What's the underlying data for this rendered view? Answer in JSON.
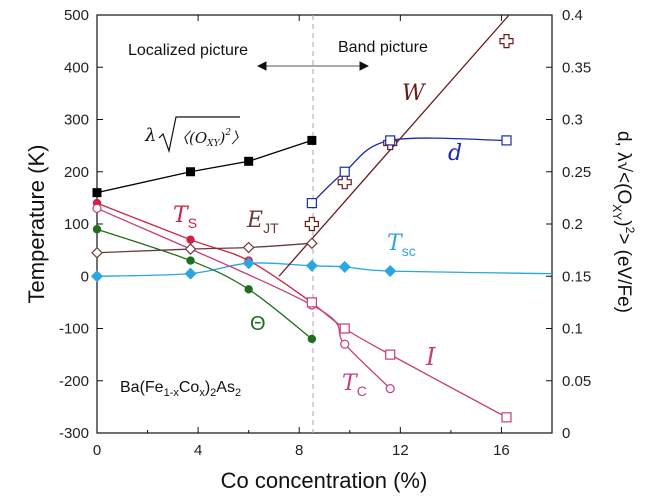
{
  "chart_data": {
    "type": "scatter",
    "title": "",
    "xlabel": "Co concentration (%)",
    "ylabel_left": "Temperature (K)",
    "ylabel_right": "d, λ√<(O_XY)²> (eV/Fe)",
    "xlim": [
      0,
      18
    ],
    "ylim_left": [
      -300,
      500
    ],
    "ylim_right": [
      0,
      0.4
    ],
    "x_ticks": [
      0,
      4,
      8,
      12,
      16
    ],
    "y_ticks_left": [
      -300,
      -200,
      -100,
      0,
      100,
      200,
      300,
      400,
      500
    ],
    "y_ticks_right": [
      0,
      0.05,
      0.1,
      0.15,
      0.2,
      0.25,
      0.3,
      0.35,
      0.4
    ],
    "y_ticklabels_right": [
      "0",
      "0.05",
      "0.1",
      "0.15",
      "0.2",
      "0.25",
      "0.3",
      "0.35",
      "0.4"
    ],
    "grid": false,
    "annotations": {
      "localized": "Localized picture",
      "band": "Band picture",
      "compound_prefix": "Ba(Fe",
      "compound_sub1": "1-x",
      "compound_mid": "Co",
      "compound_sub2": "x",
      "compound_mid2": ")",
      "compound_sub3": "2",
      "compound_mid3": "As",
      "compound_sub4": "2",
      "lambda_formula_lambda": "λ",
      "lambda_formula_inner": "〈(O",
      "lambda_formula_sub": "XY",
      "lambda_formula_close": ")",
      "lambda_formula_sup": "2",
      "lambda_formula_end": "〉",
      "ylabel_right_prefix": "d, λ√<(O",
      "ylabel_right_sub": "XY",
      "ylabel_right_mid": ")",
      "ylabel_right_sup": "2",
      "ylabel_right_suffix": ">  (eV/Fe)"
    },
    "series": [
      {
        "name": "λ√〈(O_XY)²〉",
        "label_main": "",
        "axis": "left",
        "color": "#000000",
        "marker": "filled-square",
        "smooth": false,
        "x": [
          0,
          3.7,
          6,
          8.5
        ],
        "y": [
          160,
          200,
          220,
          260
        ]
      },
      {
        "name": "T_S",
        "label_main": "T",
        "label_sub": "S",
        "axis": "left",
        "color": "#cc2244",
        "marker": "filled-circle",
        "smooth": true,
        "x": [
          0,
          3.7,
          6,
          8.5
        ],
        "y": [
          140,
          70,
          30,
          -50
        ]
      },
      {
        "name": "E_JT",
        "label_main": "E",
        "label_sub": "JT",
        "axis": "left",
        "color": "#6b3a3a",
        "marker": "open-diamond",
        "smooth": true,
        "x": [
          0,
          3.7,
          6,
          8.5
        ],
        "y": [
          45,
          52,
          55,
          63
        ]
      },
      {
        "name": "T_sc",
        "label_main": "T",
        "label_sub": "sc",
        "axis": "left",
        "color": "#2aa6e0",
        "marker": "filled-diamond",
        "smooth": true,
        "x": [
          0,
          3.7,
          6,
          8.5,
          9.8,
          11.6,
          18
        ],
        "y": [
          0,
          5,
          25,
          20,
          18,
          10,
          5
        ]
      },
      {
        "name": "Θ",
        "label_main": "Θ",
        "axis": "left",
        "color": "#1f6e1f",
        "marker": "filled-circle",
        "smooth": true,
        "x": [
          0,
          3.7,
          6,
          8.5
        ],
        "y": [
          90,
          30,
          -25,
          -120
        ]
      },
      {
        "name": "T_C",
        "label_main": "T",
        "label_sub": "C",
        "axis": "left",
        "color": "#c83c78",
        "marker": "open-circle",
        "smooth": true,
        "x": [
          0,
          8.5,
          9.8,
          11.6
        ],
        "y": [
          130,
          -55,
          -130,
          -215
        ]
      },
      {
        "name": "I",
        "label_main": "I",
        "axis": "left",
        "color": "#c83c78",
        "marker": "open-square",
        "smooth": true,
        "x": [
          8.5,
          9.8,
          11.6,
          16.2
        ],
        "y": [
          -50,
          -100,
          -150,
          -270
        ]
      },
      {
        "name": "W",
        "label_main": "W",
        "axis": "left",
        "color": "#6b1a1a",
        "marker": "open-cross",
        "smooth": false,
        "line": [
          [
            7.2,
            0
          ],
          [
            16.3,
            500
          ]
        ],
        "x": [
          8.5,
          9.8,
          11.6,
          16.2
        ],
        "y": [
          100,
          180,
          255,
          450
        ]
      },
      {
        "name": "d",
        "label_main": "d",
        "axis": "right",
        "color": "#1a2ab0",
        "marker": "open-square",
        "smooth": true,
        "x": [
          8.5,
          9.8,
          11.6,
          16.2
        ],
        "y": [
          0.22,
          0.25,
          0.28,
          0.28
        ]
      }
    ]
  }
}
